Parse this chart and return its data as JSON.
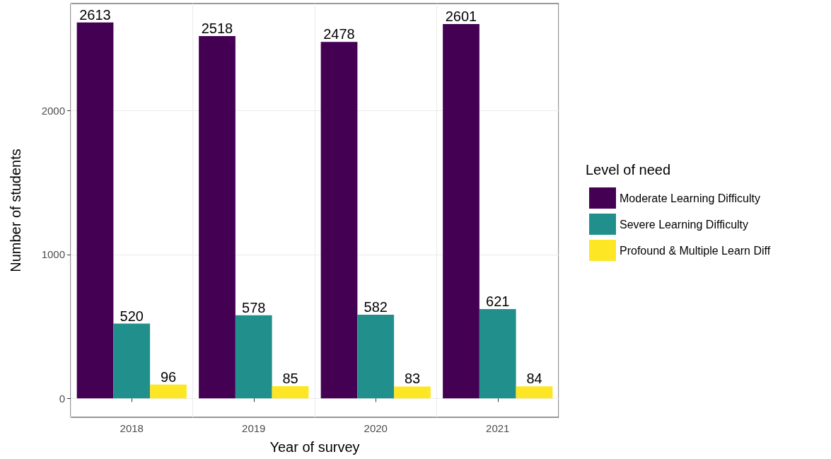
{
  "chart_data": {
    "type": "bar",
    "xlabel": "Year of survey",
    "ylabel": "Number of students",
    "legend_title": "Level of need",
    "categories": [
      "2018",
      "2019",
      "2020",
      "2021"
    ],
    "series": [
      {
        "name": "Moderate Learning Difficulty",
        "color": "#440154",
        "values": [
          2613,
          2518,
          2478,
          2601
        ]
      },
      {
        "name": "Severe Learning Difficulty",
        "color": "#21908c",
        "values": [
          520,
          578,
          582,
          621
        ]
      },
      {
        "name": "Profound & Multiple Learn Diff",
        "color": "#fde725",
        "values": [
          96,
          85,
          83,
          84
        ]
      }
    ],
    "ylim": [
      -131,
      2744
    ],
    "yticks": [
      0,
      1000,
      2000
    ],
    "grid": true,
    "legend": "right",
    "data_labels": true
  }
}
